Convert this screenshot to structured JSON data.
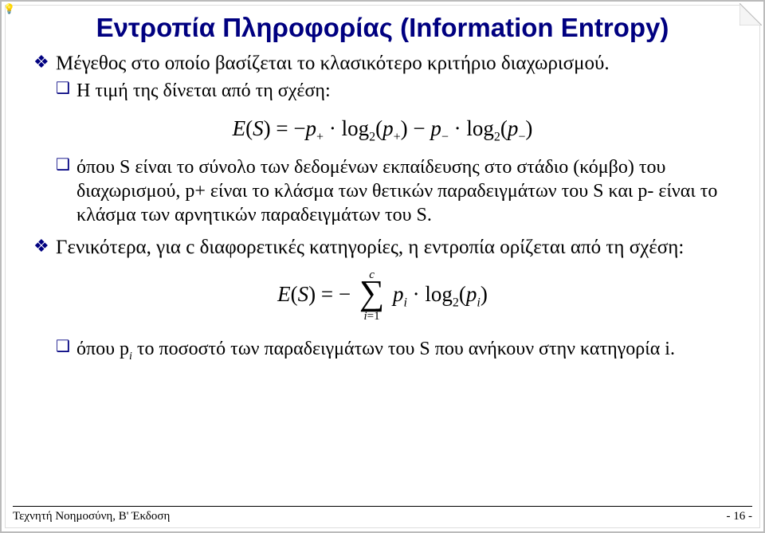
{
  "title": "Εντροπία Πληροφορίας (Information Entropy)",
  "items": [
    {
      "level": 1,
      "text": "Μέγεθος στο οποίο βασίζεται το κλασικότερο κριτήριο διαχωρισμού."
    },
    {
      "level": 2,
      "text": "Η τιμή της δίνεται από τη σχέση:"
    },
    {
      "formula": 1
    },
    {
      "level": 2,
      "text": "όπου S είναι το σύνολο των δεδομένων εκπαίδευσης στο στάδιο (κόμβο) του διαχωρισμού, p+ είναι το κλάσμα των θετικών παραδειγμάτων του S και p- είναι το κλάσμα των αρνητικών παραδειγμάτων του S."
    },
    {
      "level": 1,
      "text": "Γενικότερα, για c διαφορετικές κατηγορίες, η εντροπία ορίζεται από τη σχέση:"
    },
    {
      "formula": 2
    },
    {
      "level": 2,
      "text_html": "όπου p<sub class=\"sub-i\">i</sub> το ποσοστό των παραδειγμάτων του S που ανήκουν στην κατηγορία i."
    }
  ],
  "formula1": {
    "lhs": "E(S) =",
    "sigma_upper": "c",
    "sigma_lower": "i=1"
  },
  "footer": {
    "left": "Τεχνητή Νοημοσύνη, Β' Έκδοση",
    "right": "- 16 -"
  },
  "colors": {
    "title": "#000080",
    "bullet": "#000080",
    "text": "#000000"
  }
}
